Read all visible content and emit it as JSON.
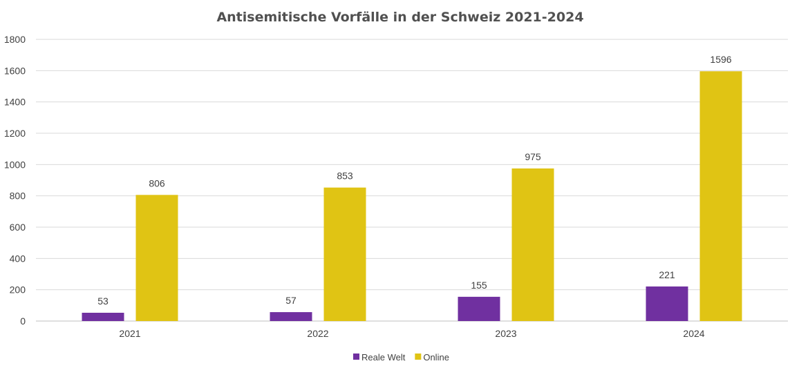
{
  "chart_data": {
    "type": "bar",
    "title": "Antisemitische Vorfälle in der Schweiz 2021-2024",
    "categories": [
      "2021",
      "2022",
      "2023",
      "2024"
    ],
    "series": [
      {
        "name": "Reale Welt",
        "values": [
          53,
          57,
          155,
          221
        ],
        "color": "#7030a0"
      },
      {
        "name": "Online",
        "values": [
          806,
          853,
          975,
          1596
        ],
        "color": "#e0c414"
      }
    ],
    "ylim": [
      0,
      1800
    ],
    "yticks": [
      0,
      200,
      400,
      600,
      800,
      1000,
      1200,
      1400,
      1600,
      1800
    ],
    "grid": true,
    "legend": "bottom",
    "data_labels": true
  }
}
